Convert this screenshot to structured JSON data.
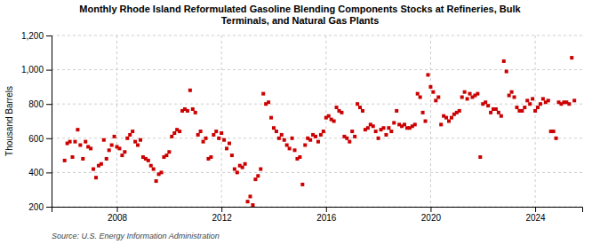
{
  "chart_data": {
    "type": "scatter",
    "title": "Monthly Rhode Island Reformulated Gasoline Blending Components Stocks at Refineries, Bulk\nTerminals, and Natural Gas Plants",
    "ylabel": "Thousand Barrels",
    "source": "Source: U.S. Energy Information Administration",
    "color": "#cc0000",
    "marker": "square",
    "grid": true,
    "xlim": [
      2005.5,
      2025.8
    ],
    "xticks": [
      2008,
      2012,
      2016,
      2020,
      2024
    ],
    "ylim": [
      200,
      1200
    ],
    "yticks": [
      200,
      400,
      600,
      800,
      {
        "value": 1000,
        "label": "1,000"
      },
      {
        "value": 1200,
        "label": "1,200"
      }
    ],
    "x": [
      2006.0,
      2006.1,
      2006.2,
      2006.3,
      2006.4,
      2006.5,
      2006.6,
      2006.7,
      2006.8,
      2006.9,
      2007.0,
      2007.1,
      2007.2,
      2007.3,
      2007.4,
      2007.5,
      2007.6,
      2007.7,
      2007.8,
      2007.9,
      2008.0,
      2008.1,
      2008.2,
      2008.3,
      2008.4,
      2008.5,
      2008.6,
      2008.7,
      2008.8,
      2008.9,
      2009.0,
      2009.1,
      2009.2,
      2009.3,
      2009.4,
      2009.5,
      2009.6,
      2009.7,
      2009.8,
      2009.9,
      2010.0,
      2010.1,
      2010.2,
      2010.3,
      2010.4,
      2010.5,
      2010.6,
      2010.7,
      2010.8,
      2010.9,
      2011.0,
      2011.1,
      2011.2,
      2011.3,
      2011.4,
      2011.5,
      2011.6,
      2011.7,
      2011.8,
      2011.9,
      2012.0,
      2012.1,
      2012.2,
      2012.3,
      2012.4,
      2012.5,
      2012.6,
      2012.7,
      2012.8,
      2012.9,
      2013.0,
      2013.1,
      2013.2,
      2013.3,
      2013.4,
      2013.5,
      2013.6,
      2013.7,
      2013.8,
      2013.9,
      2014.0,
      2014.1,
      2014.2,
      2014.3,
      2014.4,
      2014.5,
      2014.6,
      2014.7,
      2014.8,
      2014.9,
      2015.0,
      2015.1,
      2015.2,
      2015.3,
      2015.4,
      2015.5,
      2015.6,
      2015.7,
      2015.8,
      2015.9,
      2016.0,
      2016.1,
      2016.2,
      2016.3,
      2016.4,
      2016.5,
      2016.6,
      2016.7,
      2016.8,
      2016.9,
      2017.0,
      2017.1,
      2017.2,
      2017.3,
      2017.4,
      2017.5,
      2017.6,
      2017.7,
      2017.8,
      2017.9,
      2018.0,
      2018.1,
      2018.2,
      2018.3,
      2018.4,
      2018.5,
      2018.6,
      2018.7,
      2018.8,
      2018.9,
      2019.0,
      2019.1,
      2019.2,
      2019.3,
      2019.4,
      2019.5,
      2019.6,
      2019.7,
      2019.8,
      2019.9,
      2020.0,
      2020.1,
      2020.2,
      2020.3,
      2020.4,
      2020.5,
      2020.6,
      2020.7,
      2020.8,
      2020.9,
      2021.0,
      2021.1,
      2021.2,
      2021.3,
      2021.4,
      2021.5,
      2021.6,
      2021.7,
      2021.8,
      2021.9,
      2022.0,
      2022.1,
      2022.2,
      2022.3,
      2022.4,
      2022.5,
      2022.6,
      2022.7,
      2022.8,
      2022.9,
      2023.0,
      2023.1,
      2023.2,
      2023.3,
      2023.4,
      2023.5,
      2023.6,
      2023.7,
      2023.8,
      2023.9,
      2024.0,
      2024.1,
      2024.2,
      2024.3,
      2024.4,
      2024.5,
      2024.6,
      2024.7,
      2024.8,
      2024.9,
      2025.0,
      2025.1,
      2025.2,
      2025.3,
      2025.4,
      2025.5
    ],
    "values": [
      470,
      570,
      580,
      490,
      580,
      650,
      560,
      480,
      580,
      550,
      540,
      420,
      370,
      440,
      450,
      590,
      480,
      530,
      560,
      610,
      550,
      540,
      500,
      520,
      600,
      620,
      640,
      580,
      560,
      590,
      490,
      480,
      470,
      440,
      420,
      350,
      390,
      400,
      490,
      500,
      520,
      610,
      630,
      650,
      640,
      760,
      770,
      760,
      880,
      770,
      750,
      620,
      640,
      580,
      600,
      480,
      490,
      620,
      640,
      600,
      630,
      590,
      540,
      570,
      500,
      420,
      400,
      440,
      430,
      450,
      230,
      260,
      210,
      360,
      380,
      420,
      860,
      800,
      810,
      720,
      660,
      640,
      600,
      620,
      590,
      560,
      540,
      600,
      530,
      480,
      490,
      330,
      560,
      600,
      590,
      620,
      610,
      580,
      620,
      640,
      720,
      730,
      710,
      700,
      780,
      760,
      750,
      610,
      600,
      580,
      640,
      610,
      800,
      780,
      760,
      650,
      660,
      680,
      670,
      640,
      600,
      650,
      660,
      620,
      660,
      640,
      690,
      760,
      680,
      670,
      680,
      660,
      660,
      670,
      680,
      860,
      840,
      750,
      700,
      970,
      900,
      870,
      820,
      840,
      680,
      730,
      720,
      700,
      720,
      740,
      750,
      760,
      840,
      870,
      830,
      860,
      840,
      850,
      860,
      490,
      800,
      810,
      790,
      750,
      770,
      770,
      750,
      730,
      1050,
      990,
      850,
      870,
      840,
      780,
      760,
      760,
      780,
      820,
      800,
      830,
      760,
      780,
      800,
      830,
      810,
      820,
      640,
      640,
      600,
      810,
      800,
      810,
      810,
      800,
      1070,
      820
    ]
  }
}
